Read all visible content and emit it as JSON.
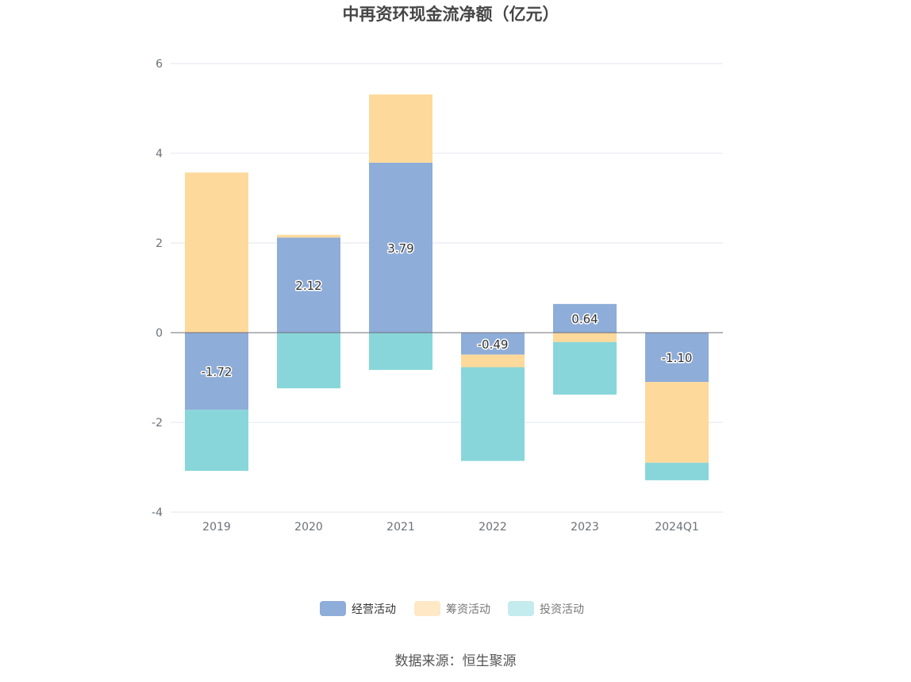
{
  "chart_data": {
    "type": "bar",
    "stacked": true,
    "title": "中再资环现金流净额（亿元）",
    "categories": [
      "2019",
      "2020",
      "2021",
      "2022",
      "2023",
      "2024Q1"
    ],
    "series": [
      {
        "name": "经营活动",
        "color": "#8eadd9",
        "values": [
          -1.72,
          2.12,
          3.79,
          -0.49,
          0.64,
          -1.1
        ],
        "labels": [
          "-1.72",
          "2.12",
          "3.79",
          "-0.49",
          "0.64",
          "-1.10"
        ]
      },
      {
        "name": "筹资活动",
        "color": "#fdd99b",
        "values": [
          3.57,
          0.06,
          1.52,
          -0.28,
          -0.21,
          -1.8
        ]
      },
      {
        "name": "投资活动",
        "color": "#88d6da",
        "values": [
          -1.36,
          -1.24,
          -0.83,
          -2.09,
          -1.17,
          -0.39
        ]
      }
    ],
    "yticks": [
      "6",
      "4",
      "2",
      "0",
      "-2",
      "-4"
    ],
    "ylim": [
      -4,
      6
    ],
    "grid": true,
    "legend": "bottom-center",
    "legend_colors": {
      "经营活动": "#8eadd9",
      "筹资活动": "#ffe8c5",
      "投资活动": "#c4ebed"
    },
    "source": "数据来源：恒生聚源"
  }
}
